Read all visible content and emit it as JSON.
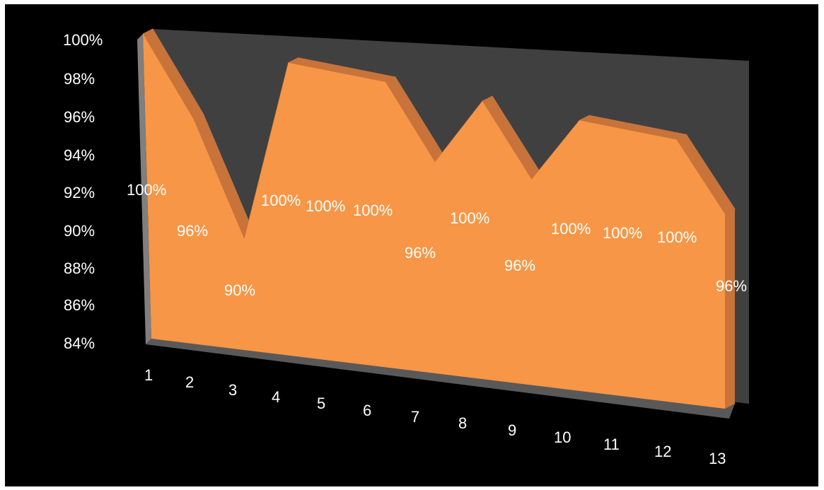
{
  "chart_data": {
    "type": "area",
    "style": "3d",
    "categories": [
      "1",
      "2",
      "3",
      "4",
      "5",
      "6",
      "7",
      "8",
      "9",
      "10",
      "11",
      "12",
      "13"
    ],
    "values": [
      1.0,
      0.96,
      0.9,
      1.0,
      1.0,
      1.0,
      0.96,
      1.0,
      0.96,
      1.0,
      1.0,
      1.0,
      0.96
    ],
    "data_labels": [
      "100%",
      "96%",
      "90%",
      "100%",
      "100%",
      "100%",
      "96%",
      "100%",
      "96%",
      "100%",
      "100%",
      "100%",
      "96%"
    ],
    "y_ticks": [
      "84%",
      "86%",
      "88%",
      "90%",
      "92%",
      "94%",
      "96%",
      "98%",
      "100%"
    ],
    "ylim": [
      0.84,
      1.0
    ],
    "grid": false,
    "legend": "none",
    "colors": {
      "background": "#000000",
      "area_front": "#F79646",
      "area_top": "#C8733A",
      "back_wall": "#404040",
      "floor": "#595959",
      "axis": "#7F7F7F",
      "text": "#FFFFFF"
    }
  }
}
